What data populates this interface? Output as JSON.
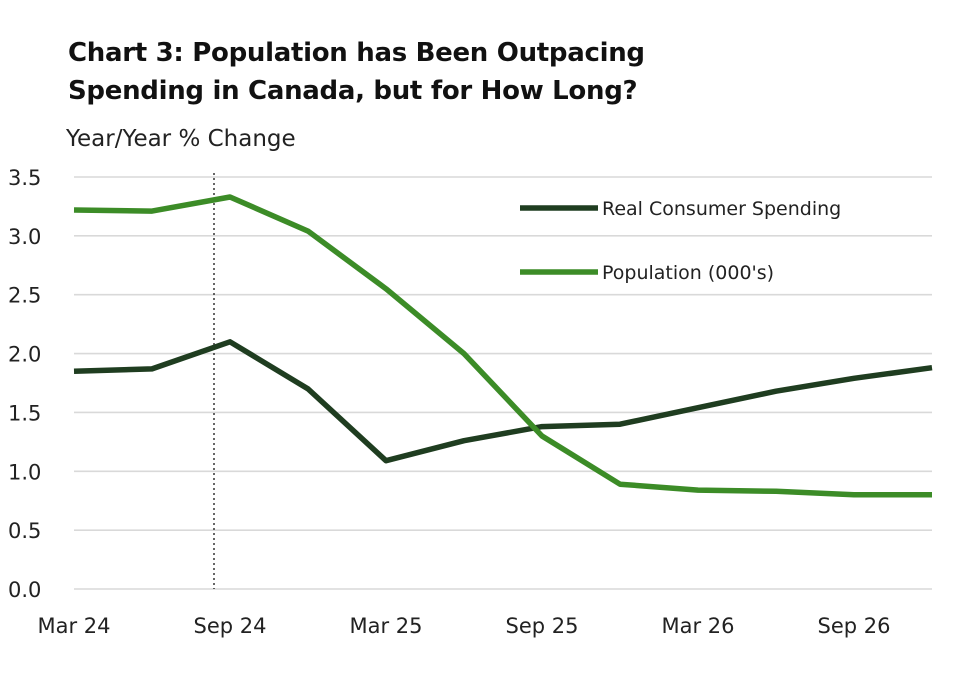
{
  "chart_data": {
    "type": "line",
    "title_line1": "Chart 3: Population has Been Outpacing",
    "title_line2": "Spending in Canada, but for How Long?",
    "ylabel": "Year/Year % Change",
    "ylim": [
      0,
      3.5
    ],
    "yticks": [
      "0.0",
      "0.5",
      "1.0",
      "1.5",
      "2.0",
      "2.5",
      "3.0",
      "3.5"
    ],
    "ytick_values": [
      0,
      0.5,
      1.0,
      1.5,
      2.0,
      2.5,
      3.0,
      3.5
    ],
    "x": [
      "Mar 24",
      "Jun 24",
      "Sep 24",
      "Dec 24",
      "Mar 25",
      "Jun 25",
      "Sep 25",
      "Dec 25",
      "Mar 26",
      "Jun 26",
      "Sep 26",
      "Dec 26"
    ],
    "xtick_labels": [
      "Mar 24",
      "Sep 24",
      "Mar 25",
      "Sep 25",
      "Mar 26",
      "Sep 26"
    ],
    "grid": true,
    "legend_position": "top-right",
    "vertical_marker": "Sep 24",
    "series": [
      {
        "name": "Real Consumer Spending",
        "color": "#1f3d20",
        "values": [
          1.85,
          1.87,
          2.1,
          1.7,
          1.09,
          1.26,
          1.38,
          1.4,
          1.54,
          1.68,
          1.79,
          1.88
        ]
      },
      {
        "name": "Population (000's)",
        "color": "#3c8c27",
        "values": [
          3.22,
          3.21,
          3.33,
          3.04,
          2.55,
          2.0,
          1.3,
          0.89,
          0.84,
          0.83,
          0.8,
          0.8
        ]
      }
    ]
  }
}
